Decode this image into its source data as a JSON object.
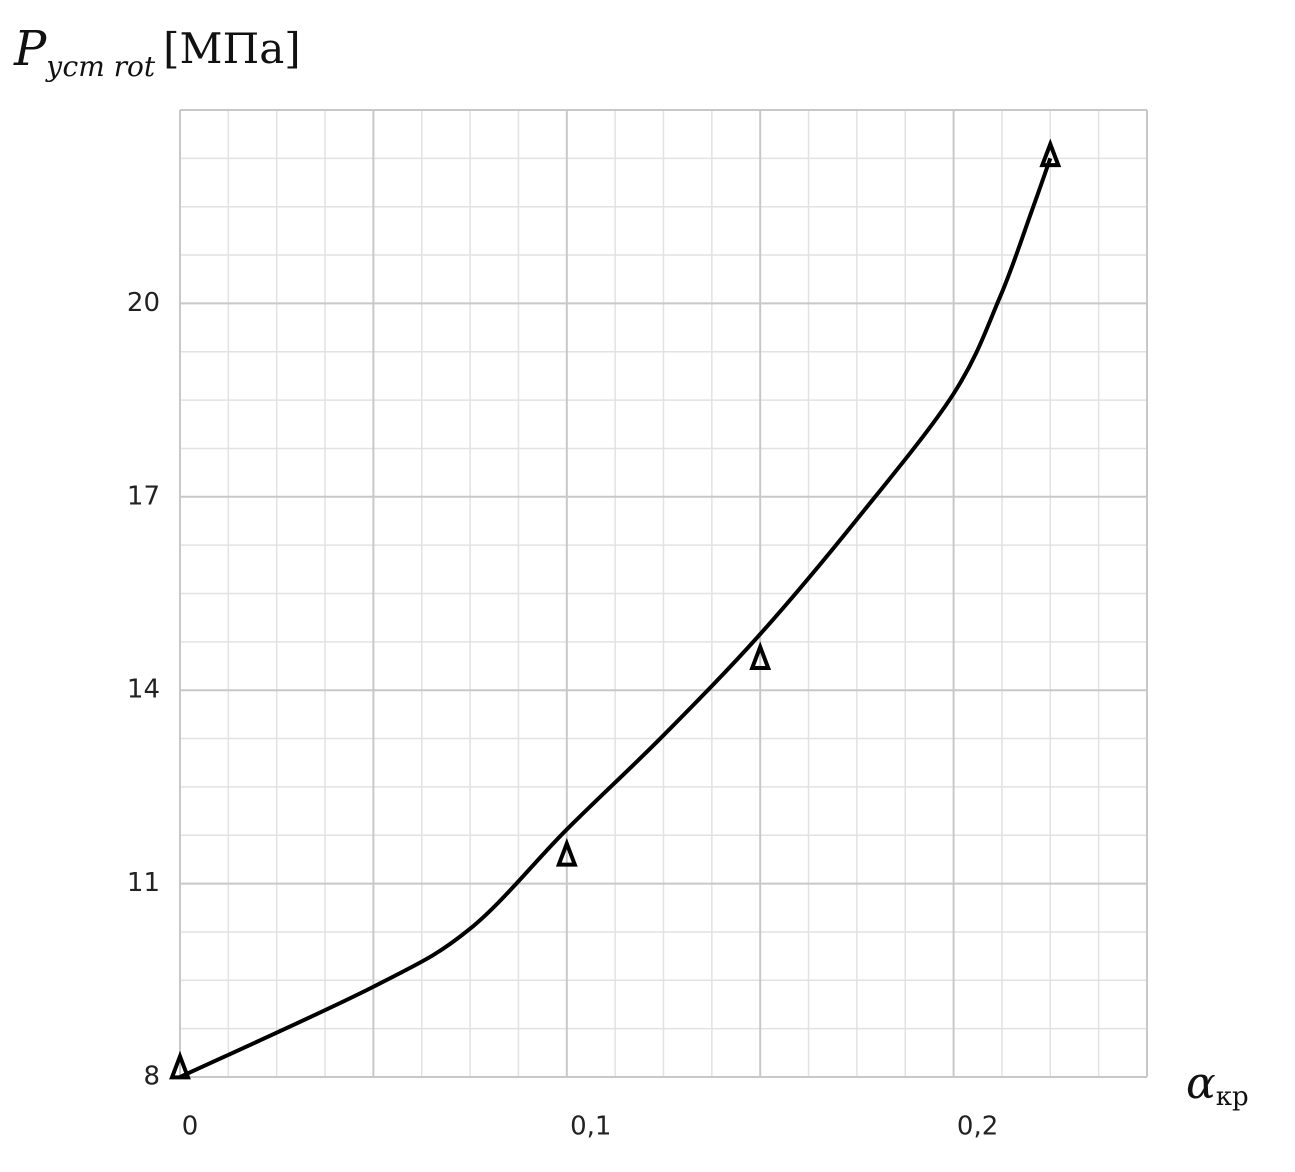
{
  "chart_data": {
    "type": "line",
    "ylabel": {
      "main": "P",
      "sub": "уст rot",
      "unit": "[МПа]"
    },
    "xlabel": {
      "main": "α",
      "sub": "кр"
    },
    "x": [
      0,
      0.05,
      0.075,
      0.1,
      0.125,
      0.15,
      0.175,
      0.2,
      0.212,
      0.22,
      0.225
    ],
    "values": [
      8,
      9.4,
      10.3,
      11.84,
      13.3,
      14.87,
      16.65,
      18.6,
      20.1,
      21.4,
      22.25
    ],
    "points": {
      "x": [
        0,
        0.1,
        0.15,
        0.225
      ],
      "y": [
        8.15,
        11.45,
        14.5,
        22.3
      ]
    },
    "color": "#000000",
    "xlim": [
      0,
      0.25
    ],
    "ylim": [
      8,
      23
    ],
    "xticks": [
      0,
      {
        "value": 0.1,
        "label": "0,1"
      },
      {
        "value": 0.2,
        "label": "0,2"
      }
    ],
    "yticks": [
      8,
      11,
      14,
      17,
      20
    ],
    "xgrid": [
      0,
      0.05,
      0.1,
      0.15,
      0.2,
      0.25
    ],
    "ygrid": [
      8,
      11,
      14,
      17,
      20,
      23
    ],
    "grid_subdivisions": 4,
    "grid": true
  }
}
